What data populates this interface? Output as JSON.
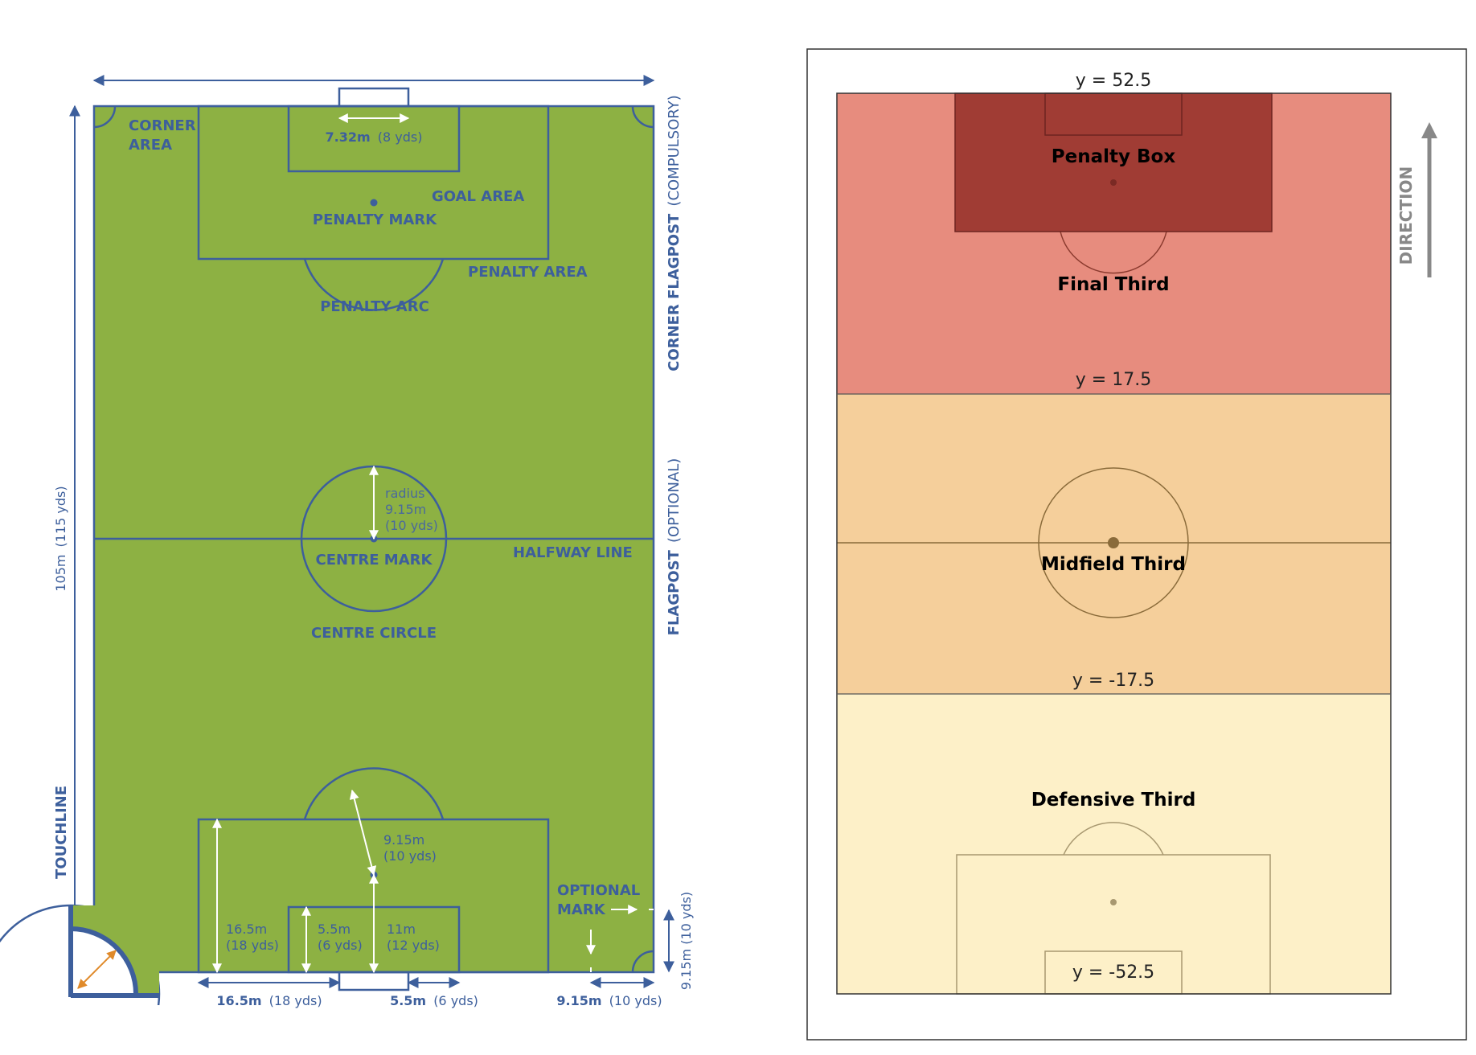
{
  "left_diagram": {
    "labels": {
      "corner_area_1": "CORNER",
      "corner_area_2": "AREA",
      "goal_width": "7.32m",
      "goal_width_yds": "(8 yds)",
      "goal_area": "GOAL AREA",
      "penalty_mark": "PENALTY MARK",
      "penalty_area": "PENALTY AREA",
      "penalty_arc": "PENALTY ARC",
      "corner_flagpost": "CORNER FLAGPOST",
      "corner_flagpost_note": "(COMPULSORY)",
      "flagpost": "FLAGPOST",
      "flagpost_note": "(OPTIONAL)",
      "radius_1": "radius",
      "radius_2": "9.15m",
      "radius_3": "(10 yds)",
      "centre_mark": "CENTRE MARK",
      "halfway_line": "HALFWAY LINE",
      "centre_circle": "CENTRE CIRCLE",
      "length": "105m",
      "length_yds": "(115 yds)",
      "touchline": "TOUCHLINE",
      "arc_distance_1": "9.15m",
      "arc_distance_2": "(10 yds)",
      "optional_mark_1": "OPTIONAL",
      "optional_mark_2": "MARK",
      "side_mark_distance": "9.15m (10 yds)",
      "pen_area_depth_1": "16.5m",
      "pen_area_depth_2": "(18 yds)",
      "goal_area_depth_1": "5.5m",
      "goal_area_depth_2": "(6 yds)",
      "penalty_spot_1": "11m",
      "penalty_spot_2": "(12 yds)",
      "bottom_pen_width": "16.5m",
      "bottom_pen_width_yds": "(18 yds)",
      "bottom_goal_width": "5.5m",
      "bottom_goal_width_yds": "(6 yds)",
      "bottom_mark_dist": "9.15m",
      "bottom_mark_dist_yds": "(10 yds)"
    },
    "colors": {
      "grass": "#8db143",
      "line": "#3d5f9c",
      "accent": "#e08a2a"
    }
  },
  "right_diagram": {
    "zones": [
      {
        "name": "Final Third",
        "color": "#e78c7e"
      },
      {
        "name": "Midfield Third",
        "color": "#f5cf9b"
      },
      {
        "name": "Defensive Third",
        "color": "#fdf0c8"
      }
    ],
    "penalty_box": {
      "name": "Penalty Box",
      "color": "#a03c34"
    },
    "y_markers": {
      "top": "y = 52.5",
      "upper": "y = 17.5",
      "lower": "y = -17.5",
      "bottom": "y = -52.5"
    },
    "direction": "DIRECTION"
  }
}
